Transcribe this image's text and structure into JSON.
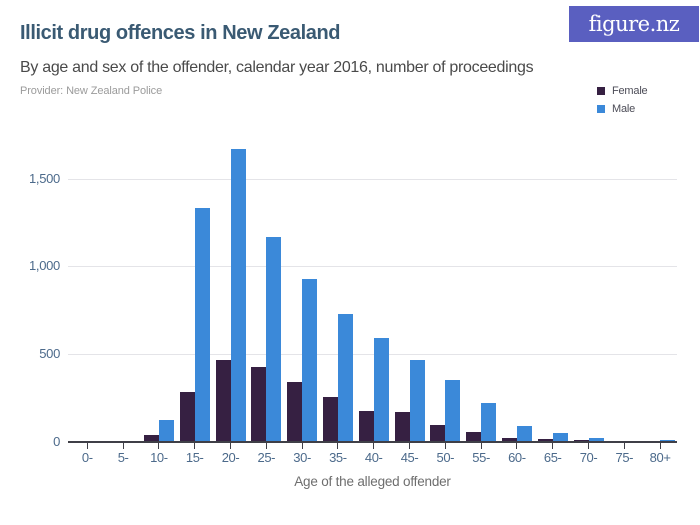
{
  "header": {
    "title": "Illicit drug offences in New Zealand",
    "subtitle": "By age and sex of the offender, calendar year 2016, number of proceedings",
    "provider": "Provider: New Zealand Police",
    "logo_text": "figure.nz"
  },
  "colors": {
    "logo_bg": "#5a5fc0",
    "title": "#3a5a73",
    "female": "#362042",
    "male": "#3b89d9"
  },
  "legend": {
    "items": [
      {
        "label": "Female",
        "color": "#362042"
      },
      {
        "label": "Male",
        "color": "#3b89d9"
      }
    ]
  },
  "chart_data": {
    "type": "bar",
    "title": "Illicit drug offences in New Zealand",
    "subtitle": "By age and sex of the offender, calendar year 2016, number of proceedings",
    "categories": [
      "0-",
      "5-",
      "10-",
      "15-",
      "20-",
      "25-",
      "30-",
      "35-",
      "40-",
      "45-",
      "50-",
      "55-",
      "60-",
      "65-",
      "70-",
      "75-",
      "80+"
    ],
    "series": [
      {
        "name": "Female",
        "color": "#362042",
        "values": [
          0,
          0,
          38,
          285,
          467,
          427,
          337,
          252,
          175,
          171,
          95,
          57,
          22,
          16,
          10,
          0,
          0
        ]
      },
      {
        "name": "Male",
        "color": "#3b89d9",
        "values": [
          0,
          4,
          124,
          1330,
          1670,
          1165,
          930,
          727,
          590,
          465,
          352,
          222,
          88,
          48,
          22,
          5,
          10
        ]
      }
    ],
    "xlabel": "Age of the alleged offender",
    "ylabel": "",
    "ylim": [
      0,
      1750
    ],
    "yticks": [
      0,
      500,
      1000,
      1500
    ],
    "ytick_labels": [
      "0",
      "500",
      "1,000",
      "1,500"
    ],
    "grid": true,
    "legend_position": "top-right"
  }
}
